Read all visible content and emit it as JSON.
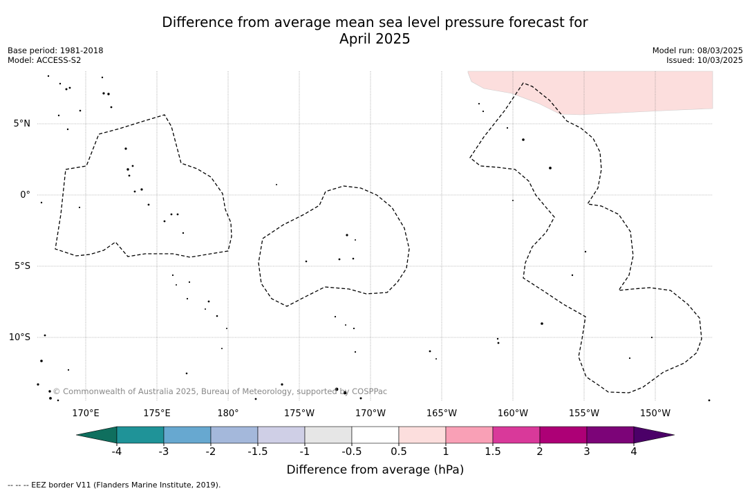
{
  "title": {
    "line1": "Difference from average mean sea level pressure forecast for",
    "line2": "April 2025"
  },
  "meta_left": {
    "base_period": "Base period: 1981-2018",
    "model": "Model: ACCESS-S2"
  },
  "meta_right": {
    "model_run": "Model run: 08/03/2025",
    "issued": "Issued: 10/03/2025"
  },
  "map": {
    "lat_labels": [
      "5°N",
      "0°",
      "5°S",
      "10°S"
    ],
    "lon_labels": [
      "170°E",
      "175°E",
      "180°",
      "175°W",
      "170°W",
      "165°W",
      "160°W",
      "155°W",
      "150°W"
    ],
    "copyright": "© Commonwealth of Australia 2025, Bureau of Meteorology, supported by COSPPac",
    "anomaly_fill_color": "#fcdedd"
  },
  "colorbar": {
    "label": "Difference from average (hPa)",
    "ticks": [
      "-4",
      "-3",
      "-2",
      "-1.5",
      "-1",
      "-0.5",
      "0.5",
      "1",
      "1.5",
      "2",
      "3",
      "4"
    ],
    "low_extend_color": "#0f6f5e",
    "high_extend_color": "#4b0068",
    "colors": [
      "#1f9398",
      "#67a8d0",
      "#a4b8db",
      "#cfcfe6",
      "#e6e6e6",
      "#ffffff",
      "#fcdedd",
      "#f9a0b6",
      "#d9399a",
      "#ad0076",
      "#7c0478"
    ]
  },
  "footnote": "--  --  -- EEZ border V11 (Flanders Marine Institute, 2019)."
}
